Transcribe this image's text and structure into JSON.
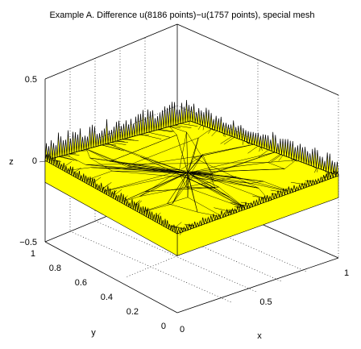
{
  "chart_data": {
    "type": "surface-mesh",
    "title": "Example A. Difference u(8186 points)−u(1757 points), special mesh",
    "xlabel": "x",
    "ylabel": "y",
    "zlabel": "z",
    "xlim": [
      0,
      1
    ],
    "ylim": [
      0,
      1
    ],
    "zlim": [
      -0.5,
      0.5
    ],
    "x_ticks": [
      "0",
      "0.5",
      "1"
    ],
    "y_ticks": [
      "0",
      "0.2",
      "0.4",
      "0.6",
      "0.8",
      "1"
    ],
    "z_ticks": [
      "−0.5",
      "0",
      "0.5"
    ],
    "surface_color": "#ffff00",
    "edge_color": "#000000",
    "grid": true,
    "surface_z_interior": 0,
    "boundary_spike_z_max": 0.15
  }
}
